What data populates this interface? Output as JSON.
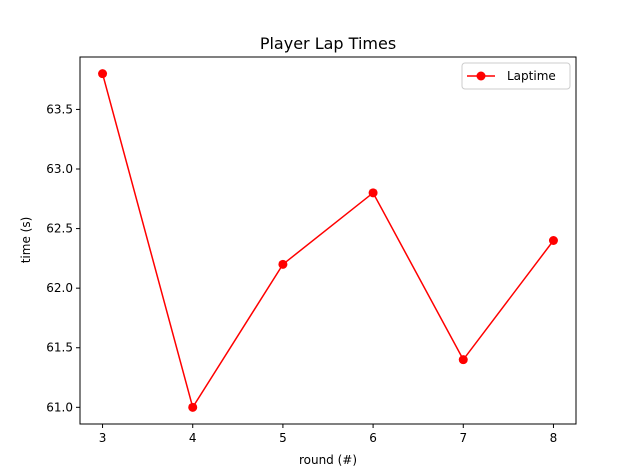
{
  "chart_data": {
    "type": "line",
    "title": "Player Lap Times",
    "xlabel": "round (#)",
    "ylabel": "time (s)",
    "x": [
      3,
      4,
      5,
      6,
      7,
      8
    ],
    "series": [
      {
        "name": "Laptime",
        "values": [
          63.8,
          61.0,
          62.2,
          62.8,
          61.4,
          62.4
        ],
        "color": "#ff0000",
        "marker": "circle"
      }
    ],
    "xlim": [
      2.75,
      8.25
    ],
    "ylim": [
      60.86,
      63.94
    ],
    "xticks": [
      "3",
      "4",
      "5",
      "6",
      "7",
      "8"
    ],
    "yticks": [
      "61.0",
      "61.5",
      "62.0",
      "62.5",
      "63.0",
      "63.5"
    ],
    "grid": false,
    "legend_position": "upper right"
  }
}
